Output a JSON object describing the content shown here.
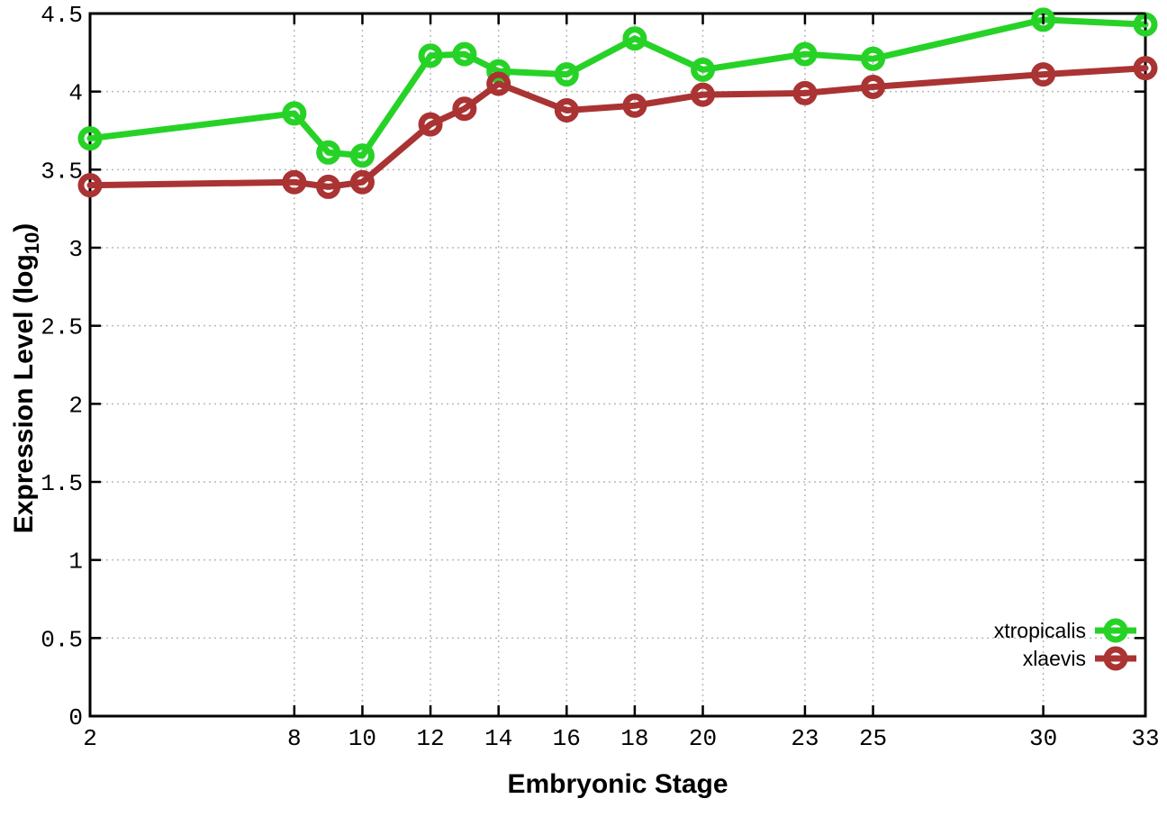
{
  "figure": {
    "background": "#ffffff",
    "axis_color": "#000000",
    "grid_color": "#b8b8b8"
  },
  "chart_data": {
    "type": "line",
    "title": "",
    "xlabel": "Embryonic Stage",
    "ylabel": "Expression Level (log10)",
    "ylabel_parts": {
      "main": "Expression Level (log",
      "sub": "10",
      "suffix": ")"
    },
    "xlim": [
      2,
      33
    ],
    "ylim": [
      0,
      4.5
    ],
    "xticks": [
      2,
      8,
      10,
      12,
      14,
      16,
      18,
      20,
      23,
      25,
      30,
      33
    ],
    "yticks": [
      0,
      0.5,
      1,
      1.5,
      2,
      2.5,
      3,
      3.5,
      4,
      4.5
    ],
    "grid": true,
    "legend_position": "inside-bottom-right",
    "x": [
      2,
      8,
      9,
      10,
      12,
      13,
      14,
      16,
      18,
      20,
      23,
      25,
      30,
      33
    ],
    "series": [
      {
        "name": "xtropicalis",
        "color": "#27D227",
        "marker": "open-circle",
        "values": [
          3.7,
          3.86,
          3.61,
          3.59,
          4.23,
          4.24,
          4.13,
          4.11,
          4.34,
          4.14,
          4.24,
          4.21,
          4.46,
          4.43
        ]
      },
      {
        "name": "xlaevis",
        "color": "#AA3333",
        "marker": "open-circle",
        "values": [
          3.4,
          3.42,
          3.39,
          3.42,
          3.79,
          3.89,
          4.05,
          3.88,
          3.91,
          3.98,
          3.99,
          4.03,
          4.11,
          4.15
        ]
      }
    ]
  }
}
